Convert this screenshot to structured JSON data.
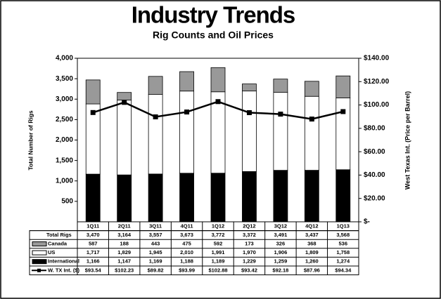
{
  "chart_data": {
    "type": "bar",
    "title": "Industry Trends",
    "subtitle": "Rig Counts and Oil Prices",
    "y_label": "Total Number of Rigs",
    "y2_label": "West Texas Int. (Price per Barrel)",
    "categories": [
      "1Q11",
      "2Q11",
      "3Q11",
      "4Q11",
      "1Q12",
      "2Q12",
      "3Q12",
      "4Q12",
      "1Q13"
    ],
    "total": {
      "name": "Total Rigs",
      "values": [
        3470,
        3164,
        3557,
        3673,
        3772,
        3372,
        3491,
        3437,
        3568
      ],
      "value_labels": [
        "3,470",
        "3,164",
        "3,557",
        "3,673",
        "3,772",
        "3,372",
        "3,491",
        "3,437",
        "3,568"
      ]
    },
    "series": [
      {
        "name": "Canada",
        "color": "#999999",
        "values": [
          587,
          188,
          443,
          475,
          592,
          173,
          326,
          368,
          536
        ]
      },
      {
        "name": "US",
        "color": "#ffffff",
        "values": [
          1717,
          1829,
          1945,
          2010,
          1991,
          1970,
          1906,
          1809,
          1758
        ],
        "value_labels": [
          "1,717",
          "1,829",
          "1,945",
          "2,010",
          "1,991",
          "1,970",
          "1,906",
          "1,809",
          "1,758"
        ]
      },
      {
        "name": "International",
        "color": "#000000",
        "values": [
          1166,
          1147,
          1169,
          1188,
          1189,
          1229,
          1259,
          1260,
          1274
        ],
        "value_labels": [
          "1,166",
          "1,147",
          "1,169",
          "1,188",
          "1,189",
          "1,229",
          "1,259",
          "1,260",
          "1,274"
        ]
      },
      {
        "name": "W. TX Int. ($)",
        "color": "#000000",
        "type": "line",
        "axis": "y2",
        "values": [
          93.54,
          102.23,
          89.82,
          93.99,
          102.88,
          93.42,
          92.18,
          87.96,
          94.34
        ],
        "value_labels": [
          "$93.54",
          "$102.23",
          "$89.82",
          "$93.99",
          "$102.88",
          "$93.42",
          "$92.18",
          "$87.96",
          "$94.34"
        ]
      }
    ],
    "ylim": [
      0,
      4000
    ],
    "yticks": [
      500,
      {
        "value": 1000,
        "label": "1,000"
      },
      {
        "value": 1500,
        "label": "1,500"
      },
      {
        "value": 2000,
        "label": "2,000"
      },
      {
        "value": 2500,
        "label": "2,500"
      },
      {
        "value": 3000,
        "label": "3,000"
      },
      {
        "value": 3500,
        "label": "3,500"
      },
      {
        "value": 4000,
        "label": "4,000"
      }
    ],
    "y2lim": [
      0,
      140
    ],
    "y2ticks": [
      {
        "value": 0,
        "label": "$-"
      },
      {
        "value": 20,
        "label": "$20.00"
      },
      {
        "value": 40,
        "label": "$40.00"
      },
      {
        "value": 60,
        "label": "$60.00"
      },
      {
        "value": 80,
        "label": "$80.00"
      },
      {
        "value": 100,
        "label": "$100.00"
      },
      {
        "value": 120,
        "label": "$120.00"
      },
      {
        "value": 140,
        "label": "$140.00"
      }
    ]
  }
}
